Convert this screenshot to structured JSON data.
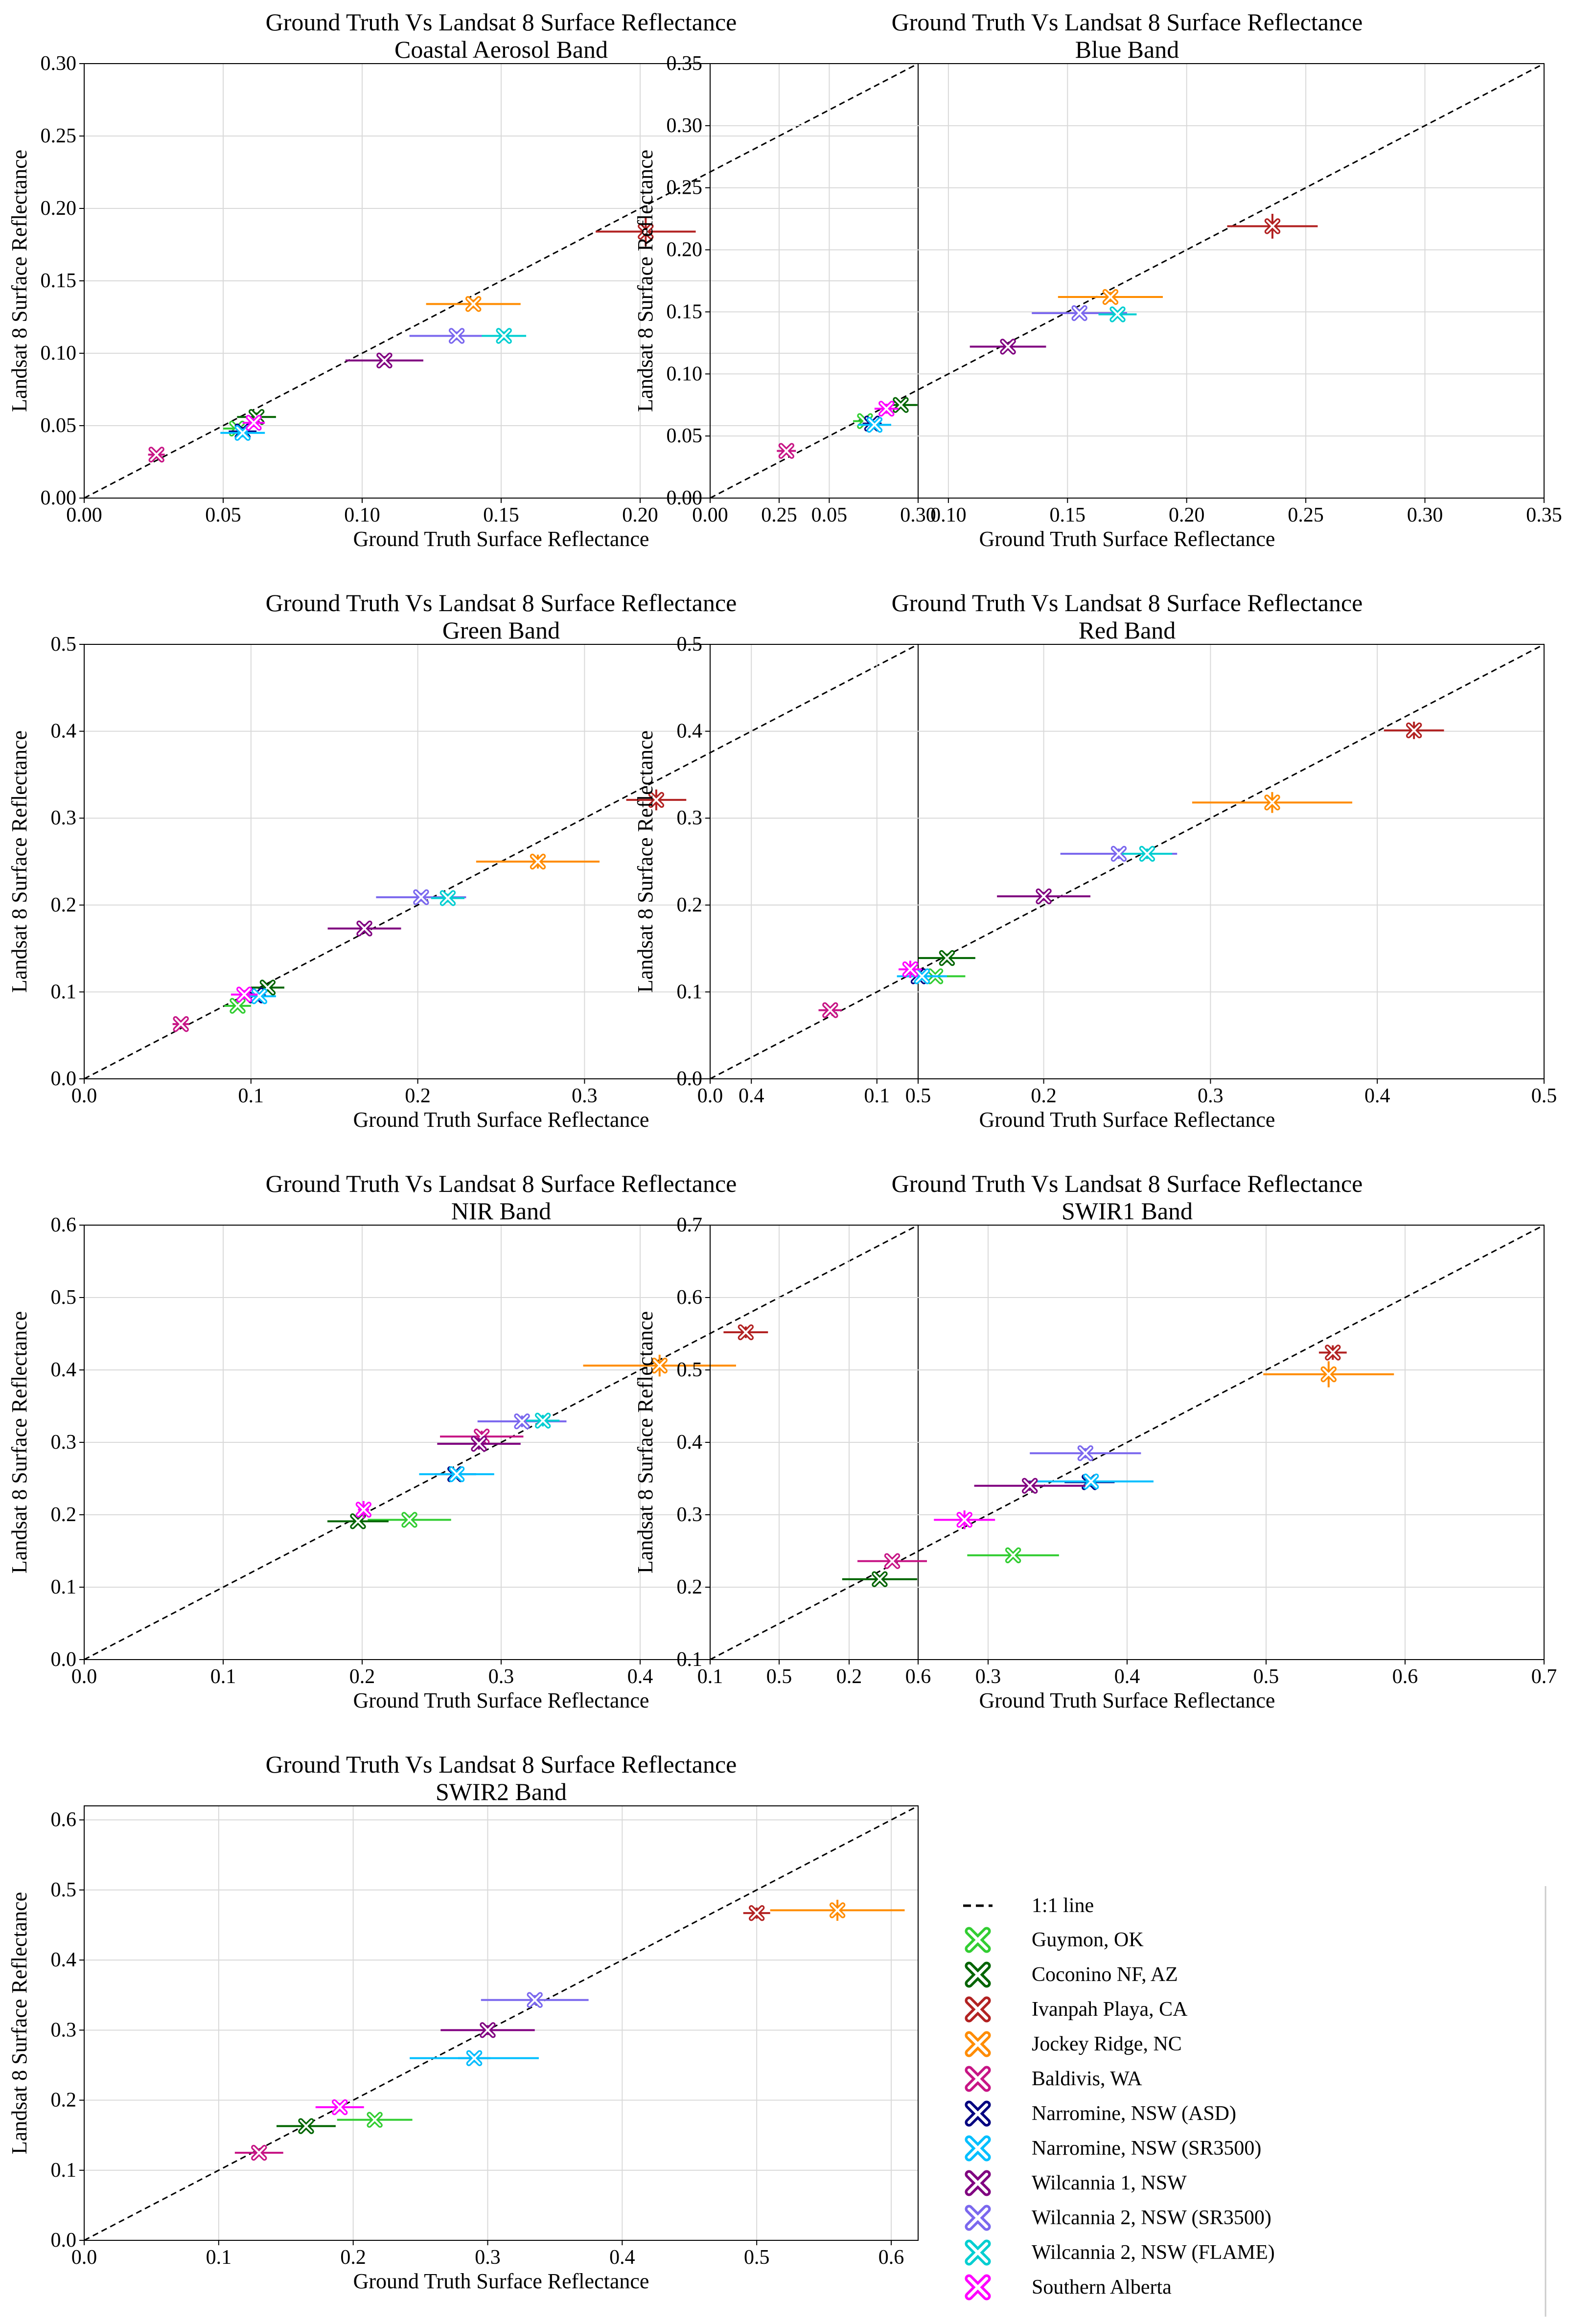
{
  "figure_title": "Ground Truth Vs Landsat 8 Surface Reflectance",
  "legend": {
    "line_label": "1:1 line",
    "sites": [
      {
        "name": "Guymon, OK",
        "color": "#32cd32"
      },
      {
        "name": "Coconino NF, AZ",
        "color": "#006400"
      },
      {
        "name": "Ivanpah Playa, CA",
        "color": "#b22222"
      },
      {
        "name": "Jockey Ridge, NC",
        "color": "#ff8c00"
      },
      {
        "name": "Baldivis, WA",
        "color": "#c71585"
      },
      {
        "name": "Narromine, NSW (ASD)",
        "color": "#000080"
      },
      {
        "name": "Narromine, NSW (SR3500)",
        "color": "#00bfff"
      },
      {
        "name": "Wilcannia 1, NSW",
        "color": "#800080"
      },
      {
        "name": "Wilcannia 2, NSW (SR3500)",
        "color": "#7b68ee"
      },
      {
        "name": "Wilcannia 2, NSW (FLAME)",
        "color": "#00ced1"
      },
      {
        "name": "Southern Alberta",
        "color": "#ff00ff"
      }
    ]
  },
  "chart_data": [
    {
      "type": "scatter",
      "title": "Ground Truth Vs Landsat 8 Surface Reflectance",
      "subtitle": "Coastal Aerosol Band",
      "xlabel": "Ground Truth Surface Reflectance",
      "ylabel": "Landsat 8 Surface Reflectance",
      "xlim": [
        0,
        0.3
      ],
      "ylim": [
        0,
        0.3
      ],
      "xticks": [
        "0.00",
        "0.05",
        "0.10",
        "0.15",
        "0.20",
        "0.25",
        "0.30"
      ],
      "yticks": [
        "0.00",
        "0.05",
        "0.10",
        "0.15",
        "0.20",
        "0.25",
        "0.30"
      ],
      "grid": true,
      "points": [
        {
          "site": "Guymon, OK",
          "x": 0.055,
          "y": 0.048,
          "xerr": 0.005,
          "yerr": 0.003
        },
        {
          "site": "Coconino NF, AZ",
          "x": 0.062,
          "y": 0.056,
          "xerr": 0.007,
          "yerr": 0.003
        },
        {
          "site": "Ivanpah Playa, CA",
          "x": 0.202,
          "y": 0.184,
          "xerr": 0.018,
          "yerr": 0.01
        },
        {
          "site": "Jockey Ridge, NC",
          "x": 0.14,
          "y": 0.134,
          "xerr": 0.017,
          "yerr": 0.003
        },
        {
          "site": "Baldivis, WA",
          "x": 0.026,
          "y": 0.03,
          "xerr": 0.003,
          "yerr": 0.002
        },
        {
          "site": "Narromine, NSW (ASD)",
          "x": 0.057,
          "y": 0.046,
          "xerr": 0.005,
          "yerr": 0.003
        },
        {
          "site": "Narromine, NSW (SR3500)",
          "x": 0.057,
          "y": 0.045,
          "xerr": 0.008,
          "yerr": 0.003
        },
        {
          "site": "Wilcannia 1, NSW",
          "x": 0.108,
          "y": 0.095,
          "xerr": 0.014,
          "yerr": 0.003
        },
        {
          "site": "Wilcannia 2, NSW (SR3500)",
          "x": 0.134,
          "y": 0.112,
          "xerr": 0.017,
          "yerr": 0.003
        },
        {
          "site": "Wilcannia 2, NSW (FLAME)",
          "x": 0.151,
          "y": 0.112,
          "xerr": 0.008,
          "yerr": 0.003
        },
        {
          "site": "Southern Alberta",
          "x": 0.061,
          "y": 0.052,
          "xerr": 0.004,
          "yerr": 0.003
        }
      ]
    },
    {
      "type": "scatter",
      "title": "Ground Truth Vs Landsat 8 Surface Reflectance",
      "subtitle": "Blue Band",
      "xlabel": "Ground Truth Surface Reflectance",
      "ylabel": "Landsat 8 Surface Reflectance",
      "xlim": [
        0,
        0.35
      ],
      "ylim": [
        0,
        0.35
      ],
      "xticks": [
        "0.00",
        "0.05",
        "0.10",
        "0.15",
        "0.20",
        "0.25",
        "0.30",
        "0.35"
      ],
      "yticks": [
        "0.00",
        "0.05",
        "0.10",
        "0.15",
        "0.20",
        "0.25",
        "0.30",
        "0.35"
      ],
      "grid": true,
      "points": [
        {
          "site": "Guymon, OK",
          "x": 0.065,
          "y": 0.062,
          "xerr": 0.005,
          "yerr": 0.003
        },
        {
          "site": "Coconino NF, AZ",
          "x": 0.08,
          "y": 0.075,
          "xerr": 0.007,
          "yerr": 0.003
        },
        {
          "site": "Ivanpah Playa, CA",
          "x": 0.236,
          "y": 0.219,
          "xerr": 0.019,
          "yerr": 0.01
        },
        {
          "site": "Jockey Ridge, NC",
          "x": 0.168,
          "y": 0.162,
          "xerr": 0.022,
          "yerr": 0.004
        },
        {
          "site": "Baldivis, WA",
          "x": 0.032,
          "y": 0.038,
          "xerr": 0.004,
          "yerr": 0.002
        },
        {
          "site": "Narromine, NSW (ASD)",
          "x": 0.068,
          "y": 0.06,
          "xerr": 0.004,
          "yerr": 0.003
        },
        {
          "site": "Narromine, NSW (SR3500)",
          "x": 0.069,
          "y": 0.059,
          "xerr": 0.007,
          "yerr": 0.003
        },
        {
          "site": "Wilcannia 1, NSW",
          "x": 0.125,
          "y": 0.122,
          "xerr": 0.016,
          "yerr": 0.003
        },
        {
          "site": "Wilcannia 2, NSW (SR3500)",
          "x": 0.155,
          "y": 0.149,
          "xerr": 0.02,
          "yerr": 0.003
        },
        {
          "site": "Wilcannia 2, NSW (FLAME)",
          "x": 0.171,
          "y": 0.148,
          "xerr": 0.008,
          "yerr": 0.003
        },
        {
          "site": "Southern Alberta",
          "x": 0.074,
          "y": 0.072,
          "xerr": 0.005,
          "yerr": 0.004
        }
      ]
    },
    {
      "type": "scatter",
      "title": "Ground Truth Vs Landsat 8 Surface Reflectance",
      "subtitle": "Green Band",
      "xlabel": "Ground Truth Surface Reflectance",
      "ylabel": "Landsat 8 Surface Reflectance",
      "xlim": [
        0,
        0.5
      ],
      "ylim": [
        0,
        0.5
      ],
      "xticks": [
        "0.0",
        "0.1",
        "0.2",
        "0.3",
        "0.4",
        "0.5"
      ],
      "yticks": [
        "0.0",
        "0.1",
        "0.2",
        "0.3",
        "0.4",
        "0.5"
      ],
      "grid": true,
      "points": [
        {
          "site": "Guymon, OK",
          "x": 0.092,
          "y": 0.084,
          "xerr": 0.008,
          "yerr": 0.003
        },
        {
          "site": "Coconino NF, AZ",
          "x": 0.11,
          "y": 0.105,
          "xerr": 0.01,
          "yerr": 0.004
        },
        {
          "site": "Ivanpah Playa, CA",
          "x": 0.343,
          "y": 0.321,
          "xerr": 0.018,
          "yerr": 0.012
        },
        {
          "site": "Jockey Ridge, NC",
          "x": 0.272,
          "y": 0.25,
          "xerr": 0.037,
          "yerr": 0.008
        },
        {
          "site": "Baldivis, WA",
          "x": 0.058,
          "y": 0.063,
          "xerr": 0.005,
          "yerr": 0.004
        },
        {
          "site": "Narromine, NSW (ASD)",
          "x": 0.103,
          "y": 0.096,
          "xerr": 0.006,
          "yerr": 0.004
        },
        {
          "site": "Narromine, NSW (SR3500)",
          "x": 0.105,
          "y": 0.095,
          "xerr": 0.01,
          "yerr": 0.004
        },
        {
          "site": "Wilcannia 1, NSW",
          "x": 0.168,
          "y": 0.173,
          "xerr": 0.022,
          "yerr": 0.005
        },
        {
          "site": "Wilcannia 2, NSW (SR3500)",
          "x": 0.202,
          "y": 0.209,
          "xerr": 0.027,
          "yerr": 0.005
        },
        {
          "site": "Wilcannia 2, NSW (FLAME)",
          "x": 0.218,
          "y": 0.208,
          "xerr": 0.01,
          "yerr": 0.005
        },
        {
          "site": "Southern Alberta",
          "x": 0.096,
          "y": 0.097,
          "xerr": 0.008,
          "yerr": 0.005
        }
      ]
    },
    {
      "type": "scatter",
      "title": "Ground Truth Vs Landsat 8 Surface Reflectance",
      "subtitle": "Red Band",
      "xlabel": "Ground Truth Surface Reflectance",
      "ylabel": "Landsat 8 Surface Reflectance",
      "xlim": [
        0,
        0.5
      ],
      "ylim": [
        0,
        0.5
      ],
      "xticks": [
        "0.0",
        "0.1",
        "0.2",
        "0.3",
        "0.4",
        "0.5"
      ],
      "yticks": [
        "0.0",
        "0.1",
        "0.2",
        "0.3",
        "0.4",
        "0.5"
      ],
      "grid": true,
      "points": [
        {
          "site": "Guymon, OK",
          "x": 0.135,
          "y": 0.118,
          "xerr": 0.018,
          "yerr": 0.004
        },
        {
          "site": "Coconino NF, AZ",
          "x": 0.142,
          "y": 0.139,
          "xerr": 0.017,
          "yerr": 0.005
        },
        {
          "site": "Ivanpah Playa, CA",
          "x": 0.422,
          "y": 0.401,
          "xerr": 0.018,
          "yerr": 0.01
        },
        {
          "site": "Jockey Ridge, NC",
          "x": 0.337,
          "y": 0.318,
          "xerr": 0.048,
          "yerr": 0.012
        },
        {
          "site": "Baldivis, WA",
          "x": 0.072,
          "y": 0.079,
          "xerr": 0.007,
          "yerr": 0.004
        },
        {
          "site": "Narromine, NSW (ASD)",
          "x": 0.125,
          "y": 0.118,
          "xerr": 0.01,
          "yerr": 0.004
        },
        {
          "site": "Narromine, NSW (SR3500)",
          "x": 0.127,
          "y": 0.118,
          "xerr": 0.015,
          "yerr": 0.004
        },
        {
          "site": "Wilcannia 1, NSW",
          "x": 0.2,
          "y": 0.21,
          "xerr": 0.028,
          "yerr": 0.005
        },
        {
          "site": "Wilcannia 2, NSW (SR3500)",
          "x": 0.245,
          "y": 0.259,
          "xerr": 0.035,
          "yerr": 0.006
        },
        {
          "site": "Wilcannia 2, NSW (FLAME)",
          "x": 0.262,
          "y": 0.259,
          "xerr": 0.015,
          "yerr": 0.006
        },
        {
          "site": "Southern Alberta",
          "x": 0.12,
          "y": 0.126,
          "xerr": 0.007,
          "yerr": 0.01
        }
      ]
    },
    {
      "type": "scatter",
      "title": "Ground Truth Vs Landsat 8 Surface Reflectance",
      "subtitle": "NIR Band",
      "xlabel": "Ground Truth Surface Reflectance",
      "ylabel": "Landsat 8 Surface Reflectance",
      "xlim": [
        0,
        0.6
      ],
      "ylim": [
        0,
        0.6
      ],
      "xticks": [
        "0.0",
        "0.1",
        "0.2",
        "0.3",
        "0.4",
        "0.5",
        "0.6"
      ],
      "yticks": [
        "0.0",
        "0.1",
        "0.2",
        "0.3",
        "0.4",
        "0.5",
        "0.6"
      ],
      "grid": true,
      "points": [
        {
          "site": "Guymon, OK",
          "x": 0.234,
          "y": 0.193,
          "xerr": 0.03,
          "yerr": 0.004
        },
        {
          "site": "Coconino NF, AZ",
          "x": 0.197,
          "y": 0.191,
          "xerr": 0.022,
          "yerr": 0.005
        },
        {
          "site": "Ivanpah Playa, CA",
          "x": 0.476,
          "y": 0.452,
          "xerr": 0.016,
          "yerr": 0.008
        },
        {
          "site": "Jockey Ridge, NC",
          "x": 0.414,
          "y": 0.406,
          "xerr": 0.055,
          "yerr": 0.015
        },
        {
          "site": "Baldivis, WA",
          "x": 0.286,
          "y": 0.308,
          "xerr": 0.03,
          "yerr": 0.008
        },
        {
          "site": "Narromine, NSW (ASD)",
          "x": 0.267,
          "y": 0.256,
          "xerr": 0.015,
          "yerr": 0.006
        },
        {
          "site": "Narromine, NSW (SR3500)",
          "x": 0.268,
          "y": 0.256,
          "xerr": 0.027,
          "yerr": 0.006
        },
        {
          "site": "Wilcannia 1, NSW",
          "x": 0.284,
          "y": 0.298,
          "xerr": 0.03,
          "yerr": 0.008
        },
        {
          "site": "Wilcannia 2, NSW (SR3500)",
          "x": 0.315,
          "y": 0.329,
          "xerr": 0.032,
          "yerr": 0.008
        },
        {
          "site": "Wilcannia 2, NSW (FLAME)",
          "x": 0.33,
          "y": 0.33,
          "xerr": 0.012,
          "yerr": 0.008
        },
        {
          "site": "Southern Alberta",
          "x": 0.201,
          "y": 0.207,
          "xerr": 0.004,
          "yerr": 0.012
        }
      ]
    },
    {
      "type": "scatter",
      "title": "Ground Truth Vs Landsat 8 Surface Reflectance",
      "subtitle": "SWIR1 Band",
      "xlabel": "Ground Truth Surface Reflectance",
      "ylabel": "Landsat 8 Surface Reflectance",
      "xlim": [
        0.1,
        0.7
      ],
      "ylim": [
        0.1,
        0.7
      ],
      "xticks": [
        "0.1",
        "0.2",
        "0.3",
        "0.4",
        "0.5",
        "0.6",
        "0.7"
      ],
      "yticks": [
        "0.1",
        "0.2",
        "0.3",
        "0.4",
        "0.5",
        "0.6",
        "0.7"
      ],
      "grid": true,
      "points": [
        {
          "site": "Guymon, OK",
          "x": 0.318,
          "y": 0.244,
          "xerr": 0.033,
          "yerr": 0.004
        },
        {
          "site": "Coconino NF, AZ",
          "x": 0.222,
          "y": 0.211,
          "xerr": 0.027,
          "yerr": 0.005
        },
        {
          "site": "Ivanpah Playa, CA",
          "x": 0.548,
          "y": 0.524,
          "xerr": 0.01,
          "yerr": 0.01
        },
        {
          "site": "Jockey Ridge, NC",
          "x": 0.545,
          "y": 0.494,
          "xerr": 0.047,
          "yerr": 0.018
        },
        {
          "site": "Baldivis, WA",
          "x": 0.231,
          "y": 0.236,
          "xerr": 0.025,
          "yerr": 0.005
        },
        {
          "site": "Narromine, NSW (ASD)",
          "x": 0.373,
          "y": 0.345,
          "xerr": 0.018,
          "yerr": 0.006
        },
        {
          "site": "Narromine, NSW (SR3500)",
          "x": 0.374,
          "y": 0.346,
          "xerr": 0.045,
          "yerr": 0.006
        },
        {
          "site": "Wilcannia 1, NSW",
          "x": 0.33,
          "y": 0.34,
          "xerr": 0.04,
          "yerr": 0.007
        },
        {
          "site": "Wilcannia 2, NSW (SR3500)",
          "x": 0.37,
          "y": 0.385,
          "xerr": 0.04,
          "yerr": 0.007
        },
        {
          "site": "Southern Alberta",
          "x": 0.283,
          "y": 0.293,
          "xerr": 0.022,
          "yerr": 0.013
        }
      ]
    },
    {
      "type": "scatter",
      "title": "Ground Truth Vs Landsat 8 Surface Reflectance",
      "subtitle": "SWIR2 Band",
      "xlabel": "Ground Truth Surface Reflectance",
      "ylabel": "Landsat 8 Surface Reflectance",
      "xlim": [
        0,
        0.62
      ],
      "ylim": [
        0,
        0.62
      ],
      "xticks": [
        "0.0",
        "0.1",
        "0.2",
        "0.3",
        "0.4",
        "0.5",
        "0.6"
      ],
      "yticks": [
        "0.0",
        "0.1",
        "0.2",
        "0.3",
        "0.4",
        "0.5",
        "0.6"
      ],
      "grid": true,
      "points": [
        {
          "site": "Guymon, OK",
          "x": 0.216,
          "y": 0.172,
          "xerr": 0.028,
          "yerr": 0.004
        },
        {
          "site": "Coconino NF, AZ",
          "x": 0.165,
          "y": 0.163,
          "xerr": 0.022,
          "yerr": 0.004
        },
        {
          "site": "Ivanpah Playa, CA",
          "x": 0.5,
          "y": 0.467,
          "xerr": 0.01,
          "yerr": 0.008
        },
        {
          "site": "Jockey Ridge, NC",
          "x": 0.56,
          "y": 0.471,
          "xerr": 0.05,
          "yerr": 0.015
        },
        {
          "site": "Baldivis, WA",
          "x": 0.13,
          "y": 0.125,
          "xerr": 0.018,
          "yerr": 0.004
        },
        {
          "site": "Narromine, NSW (ASD)",
          "x": 0.29,
          "y": 0.26,
          "xerr": 0.012,
          "yerr": 0.006
        },
        {
          "site": "Narromine, NSW (SR3500)",
          "x": 0.29,
          "y": 0.26,
          "xerr": 0.048,
          "yerr": 0.006
        },
        {
          "site": "Wilcannia 1, NSW",
          "x": 0.3,
          "y": 0.3,
          "xerr": 0.035,
          "yerr": 0.007
        },
        {
          "site": "Wilcannia 2, NSW (SR3500)",
          "x": 0.335,
          "y": 0.343,
          "xerr": 0.04,
          "yerr": 0.007
        },
        {
          "site": "Southern Alberta",
          "x": 0.19,
          "y": 0.19,
          "xerr": 0.018,
          "yerr": 0.006
        }
      ]
    }
  ]
}
